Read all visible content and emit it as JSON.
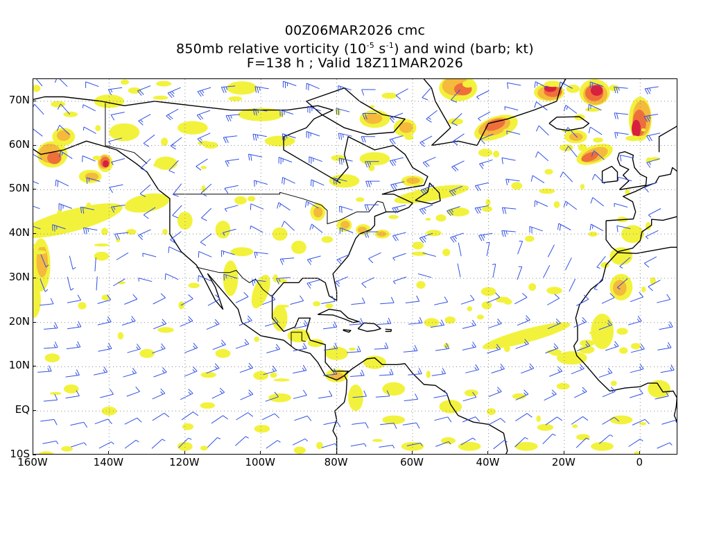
{
  "title": {
    "line1": "00Z06MAR2026 cmc",
    "line2_pre": "850mb relative vorticity (10",
    "line2_exp1": "-5",
    "line2_mid": " s",
    "line2_exp2": "-1",
    "line2_post": ") and wind (barb; kt)",
    "line3": "F=138 h ; Valid 18Z11MAR2026"
  },
  "map": {
    "lon_range": [
      -160,
      10
    ],
    "lat_range": [
      -10,
      75
    ],
    "projection": "equirectangular",
    "grid": "dotted",
    "x_ticks": [
      {
        "lon": -160,
        "label": "160W"
      },
      {
        "lon": -140,
        "label": "140W"
      },
      {
        "lon": -120,
        "label": "120W"
      },
      {
        "lon": -100,
        "label": "100W"
      },
      {
        "lon": -80,
        "label": "80W"
      },
      {
        "lon": -60,
        "label": "60W"
      },
      {
        "lon": -40,
        "label": "40W"
      },
      {
        "lon": -20,
        "label": "20W"
      },
      {
        "lon": 0,
        "label": "0"
      }
    ],
    "y_ticks": [
      {
        "lat": 70,
        "label": "70N"
      },
      {
        "lat": 60,
        "label": "60N"
      },
      {
        "lat": 50,
        "label": "50N"
      },
      {
        "lat": 40,
        "label": "40N"
      },
      {
        "lat": 30,
        "label": "30N"
      },
      {
        "lat": 20,
        "label": "20N"
      },
      {
        "lat": 10,
        "label": "10N"
      },
      {
        "lat": 0,
        "label": "EQ"
      },
      {
        "lat": -10,
        "label": "10S"
      }
    ],
    "colors": {
      "vort_level1": "#f2f23c",
      "vort_level2": "#f5b93c",
      "vort_level3": "#ef6f3a",
      "vort_level4": "#d8203f",
      "vort_level5": "#e43ccf",
      "barb": "#2f4fe6",
      "coast": "#000000",
      "grid": "#888888"
    }
  }
}
